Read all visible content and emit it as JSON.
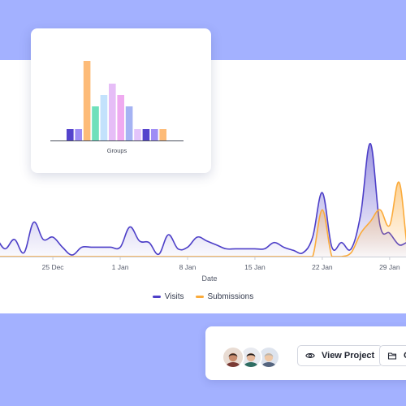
{
  "groups_card": {
    "xlabel": "Groups",
    "chart_data": {
      "type": "bar",
      "xlabel": "Groups",
      "values": [
        14,
        14,
        98,
        42,
        56,
        70,
        56,
        42,
        14,
        14,
        14,
        14
      ],
      "colors": [
        "#5443cc",
        "#9e8cf5",
        "#fdbb78",
        "#6fe0bb",
        "#c3e2fc",
        "#e6bdf7",
        "#efaaf0",
        "#a5b3f3",
        "#e3c4fb",
        "#5443cc",
        "#9e8cf5",
        "#fdbb78"
      ]
    }
  },
  "main_chart": {
    "xlabel": "Date",
    "x_ticks": [
      "25 Dec",
      "1 Jan",
      "8 Jan",
      "15 Jan",
      "22 Jan",
      "29 Jan"
    ],
    "chart_data": {
      "type": "area",
      "xlabel": "Date",
      "x": [
        "19 Dec",
        "20 Dec",
        "21 Dec",
        "22 Dec",
        "23 Dec",
        "24 Dec",
        "25 Dec",
        "26 Dec",
        "27 Dec",
        "28 Dec",
        "29 Dec",
        "30 Dec",
        "31 Dec",
        "1 Jan",
        "2 Jan",
        "3 Jan",
        "4 Jan",
        "5 Jan",
        "6 Jan",
        "7 Jan",
        "8 Jan",
        "9 Jan",
        "10 Jan",
        "11 Jan",
        "12 Jan",
        "13 Jan",
        "14 Jan",
        "15 Jan",
        "16 Jan",
        "17 Jan",
        "18 Jan",
        "19 Jan",
        "20 Jan",
        "21 Jan",
        "22 Jan",
        "23 Jan",
        "24 Jan",
        "25 Jan",
        "26 Jan",
        "27 Jan",
        "28 Jan",
        "29 Jan",
        "30 Jan",
        "31 Jan",
        "1 Feb"
      ],
      "series": [
        {
          "name": "Visits",
          "color": "#4d3fc8",
          "values": [
            28,
            10,
            22,
            5,
            44,
            22,
            25,
            12,
            2,
            12,
            12,
            12,
            12,
            12,
            38,
            20,
            18,
            3,
            28,
            10,
            12,
            25,
            20,
            15,
            10,
            10,
            10,
            10,
            10,
            18,
            12,
            8,
            5,
            25,
            82,
            12,
            18,
            10,
            55,
            145,
            40,
            30,
            15,
            18,
            5
          ]
        },
        {
          "name": "Submissions",
          "color": "#fbab3b",
          "values": [
            0,
            0,
            0,
            0,
            0,
            0,
            0,
            0,
            0,
            0,
            0,
            0,
            0,
            0,
            0,
            0,
            0,
            0,
            0,
            0,
            0,
            0,
            0,
            0,
            0,
            0,
            0,
            0,
            0,
            0,
            0,
            0,
            0,
            0,
            60,
            0,
            0,
            5,
            30,
            45,
            60,
            40,
            95,
            0,
            18
          ]
        }
      ]
    }
  },
  "legend": {
    "items": [
      {
        "label": "Visits",
        "color": "#4d3fc8"
      },
      {
        "label": "Submissions",
        "color": "#fbab3b"
      }
    ]
  },
  "actions": {
    "view_project_label": "View Project",
    "open_label": "O",
    "view_icon": "eye-icon",
    "open_icon": "folder-icon"
  },
  "avatars": [
    {
      "icon": "user-avatar",
      "bg": "#e9dcd3",
      "skin": "#c98c6e",
      "hair": "#3b2b24",
      "shirt": "#7a3a34"
    },
    {
      "icon": "user-avatar",
      "bg": "#e8eaf0",
      "skin": "#e6b89c",
      "hair": "#1e1b1c",
      "shirt": "#2f6d63"
    },
    {
      "icon": "user-avatar",
      "bg": "#dee4ee",
      "skin": "#eec7a6",
      "hair": "#b9b4ac",
      "shirt": "#55657f"
    }
  ]
}
